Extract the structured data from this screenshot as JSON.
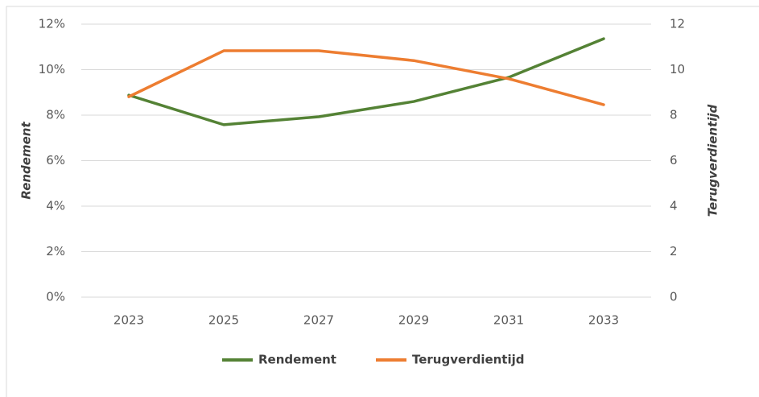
{
  "chart_data": {
    "type": "line",
    "categories": [
      "2023",
      "2025",
      "2027",
      "2029",
      "2031",
      "2033"
    ],
    "series": [
      {
        "name": "Rendement",
        "color": "#548235",
        "values": [
          8.88,
          7.58,
          7.93,
          8.6,
          9.66,
          11.36
        ]
      },
      {
        "name": "Terugverdientijd",
        "color": "#ed7d31",
        "axis": "y2",
        "values": [
          8.81,
          10.83,
          10.83,
          10.4,
          9.6,
          8.46
        ]
      }
    ],
    "ylabel": "Rendement",
    "y2label": "Terugverdientijd",
    "ylim": [
      0,
      12
    ],
    "yticks": [
      {
        "value": 0,
        "label": "0%"
      },
      {
        "value": 2,
        "label": "2%"
      },
      {
        "value": 4,
        "label": "4%"
      },
      {
        "value": 6,
        "label": "6%"
      },
      {
        "value": 8,
        "label": "8%"
      },
      {
        "value": 10,
        "label": "10%"
      },
      {
        "value": 12,
        "label": "12%"
      }
    ],
    "y2lim": [
      0,
      12
    ],
    "y2ticks": [
      0,
      2,
      4,
      6,
      8,
      10,
      12
    ],
    "grid": true,
    "legend": "bottom"
  }
}
